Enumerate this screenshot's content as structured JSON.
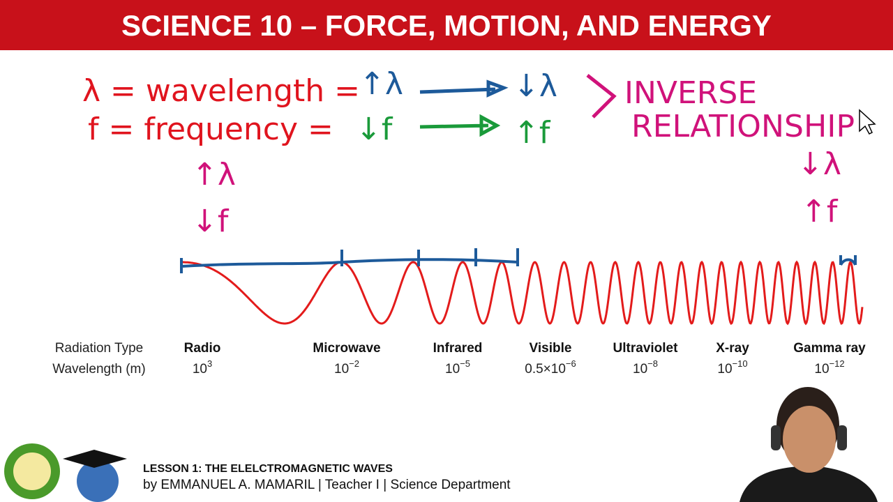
{
  "header": {
    "title": "SCIENCE 10 – FORCE, MOTION, AND ENERGY"
  },
  "annotations": [
    "λ = wavelength =",
    "f = frequency =",
    "↑λ",
    "↓λ",
    "↓f",
    "↑f",
    "INVERSE",
    "RELATIONSHIP",
    "↑λ",
    "↓f",
    "↓λ",
    "↑f"
  ],
  "spectrum": {
    "row_labels": [
      "Radiation Type",
      "Wavelength (m)"
    ],
    "columns": [
      {
        "type": "Radio",
        "wavelength": {
          "base": "10",
          "exponent": "3"
        }
      },
      {
        "type": "Microwave",
        "wavelength": {
          "base": "10",
          "exponent": "−2"
        }
      },
      {
        "type": "Infrared",
        "wavelength": {
          "base": "10",
          "exponent": "−5"
        }
      },
      {
        "type": "Visible",
        "wavelength": {
          "base": "0.5×10",
          "exponent": "−6"
        }
      },
      {
        "type": "Ultraviolet",
        "wavelength": {
          "base": "10",
          "exponent": "−8"
        }
      },
      {
        "type": "X-ray",
        "wavelength": {
          "base": "10",
          "exponent": "−10"
        }
      },
      {
        "type": "Gamma ray",
        "wavelength": {
          "base": "10",
          "exponent": "−12"
        }
      }
    ]
  },
  "footer": {
    "lesson": "LESSON 1: THE ELELCTROMAGNETIC WAVES",
    "byline": "by EMMANUEL A. MAMARIL | Teacher I | Science Department"
  }
}
